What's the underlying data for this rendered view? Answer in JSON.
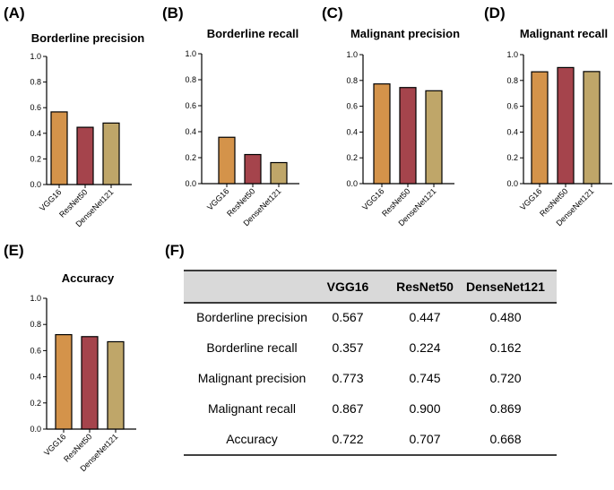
{
  "colors": {
    "VGG16": "#d4934a",
    "ResNet50": "#a5444c",
    "DenseNet121": "#bfa669",
    "header_bg": "#d9d9d9"
  },
  "chart_data": [
    {
      "panel": "(A)",
      "type": "bar",
      "title": "Borderline precision",
      "categories": [
        "VGG16",
        "ResNet50",
        "DenseNet121"
      ],
      "values": [
        0.567,
        0.447,
        0.48
      ],
      "ylim": [
        0,
        1.0
      ],
      "yticks": [
        "0.0",
        "0.2",
        "0.4",
        "0.6",
        "0.8",
        "1.0"
      ],
      "xlabel": "",
      "ylabel": ""
    },
    {
      "panel": "(B)",
      "type": "bar",
      "title": "Borderline recall",
      "categories": [
        "VGG16",
        "ResNet50",
        "DenseNet121"
      ],
      "values": [
        0.357,
        0.224,
        0.162
      ],
      "ylim": [
        0,
        1.0
      ],
      "yticks": [
        "0.0",
        "0.2",
        "0.4",
        "0.6",
        "0.8",
        "1.0"
      ],
      "xlabel": "",
      "ylabel": ""
    },
    {
      "panel": "(C)",
      "type": "bar",
      "title": "Malignant precision",
      "categories": [
        "VGG16",
        "ResNet50",
        "DenseNet121"
      ],
      "values": [
        0.773,
        0.745,
        0.72
      ],
      "ylim": [
        0,
        1.0
      ],
      "yticks": [
        "0.0",
        "0.2",
        "0.4",
        "0.6",
        "0.8",
        "1.0"
      ],
      "xlabel": "",
      "ylabel": ""
    },
    {
      "panel": "(D)",
      "type": "bar",
      "title": "Malignant recall",
      "categories": [
        "VGG16",
        "ResNet50",
        "DenseNet121"
      ],
      "values": [
        0.867,
        0.9,
        0.869
      ],
      "ylim": [
        0,
        1.0
      ],
      "yticks": [
        "0.0",
        "0.2",
        "0.4",
        "0.6",
        "0.8",
        "1.0"
      ],
      "xlabel": "",
      "ylabel": ""
    },
    {
      "panel": "(E)",
      "type": "bar",
      "title": "Accuracy",
      "categories": [
        "VGG16",
        "ResNet50",
        "DenseNet121"
      ],
      "values": [
        0.722,
        0.707,
        0.668
      ],
      "ylim": [
        0,
        1.0
      ],
      "yticks": [
        "0.0",
        "0.2",
        "0.4",
        "0.6",
        "0.8",
        "1.0"
      ],
      "xlabel": "",
      "ylabel": ""
    },
    {
      "panel": "(F)",
      "type": "table",
      "columns": [
        "",
        "VGG16",
        "ResNet50",
        "DenseNet121"
      ],
      "rows": [
        [
          "Borderline precision",
          "0.567",
          "0.447",
          "0.480"
        ],
        [
          "Borderline recall",
          "0.357",
          "0.224",
          "0.162"
        ],
        [
          "Malignant precision",
          "0.773",
          "0.745",
          "0.720"
        ],
        [
          "Malignant recall",
          "0.867",
          "0.900",
          "0.869"
        ],
        [
          "Accuracy",
          "0.722",
          "0.707",
          "0.668"
        ]
      ]
    }
  ]
}
